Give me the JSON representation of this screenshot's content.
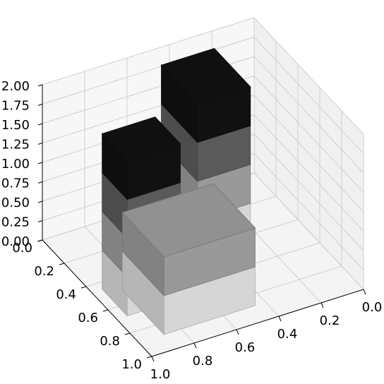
{
  "chart_data": {
    "type": "voxels",
    "xlim": [
      0,
      1
    ],
    "ylim": [
      0,
      1
    ],
    "zlim": [
      0,
      2
    ],
    "xticks": [
      {
        "value": 0,
        "label": "0.0"
      },
      0.2,
      0.4,
      0.6,
      0.8,
      {
        "value": 1,
        "label": "1.0"
      }
    ],
    "yticks": [
      {
        "value": 0,
        "label": "0.0"
      },
      0.2,
      0.4,
      0.6,
      0.8,
      {
        "value": 1,
        "label": "1.0"
      }
    ],
    "zticks": [
      {
        "value": 0,
        "label": "0.00"
      },
      {
        "value": 0.25,
        "label": "0.25"
      },
      {
        "value": 0.5,
        "label": "0.50"
      },
      {
        "value": 0.75,
        "label": "0.75"
      },
      {
        "value": 1,
        "label": "1.00"
      },
      {
        "value": 1.25,
        "label": "1.25"
      },
      {
        "value": 1.5,
        "label": "1.50"
      },
      {
        "value": 1.75,
        "label": "1.75"
      },
      {
        "value": 2,
        "label": "2.00"
      }
    ],
    "grid": true,
    "layers": [
      {
        "z": [
          0,
          0.5
        ],
        "color": "#d6d6d6"
      },
      {
        "z": [
          0.5,
          1
        ],
        "color": "#999999"
      },
      {
        "z": [
          1,
          1.5
        ],
        "color": "#5a5a5a"
      },
      {
        "z": [
          1.5,
          2
        ],
        "color": "#111111"
      }
    ],
    "blocks": [
      {
        "x": [
          0.25,
          0.5
        ],
        "y": [
          0.12,
          0.45
        ],
        "z": [
          0,
          2
        ]
      },
      {
        "x": [
          0.45,
          0.88
        ],
        "y": [
          0.5,
          0.88
        ],
        "z": [
          0,
          1
        ]
      },
      {
        "x": [
          0.7,
          0.95
        ],
        "y": [
          0.45,
          0.68
        ],
        "z": [
          0,
          2
        ]
      }
    ]
  }
}
